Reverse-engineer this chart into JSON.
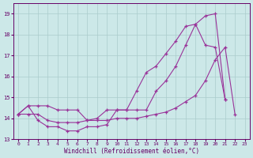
{
  "xlabel": "Windchill (Refroidissement éolien,°C)",
  "background_color": "#cce8e8",
  "grid_color": "#aacccc",
  "line_color": "#993399",
  "xlim": [
    -0.5,
    23.5
  ],
  "ylim": [
    13.0,
    19.5
  ],
  "yticks": [
    13,
    14,
    15,
    16,
    17,
    18,
    19
  ],
  "xticks": [
    0,
    1,
    2,
    3,
    4,
    5,
    6,
    7,
    8,
    9,
    10,
    11,
    12,
    13,
    14,
    15,
    16,
    17,
    18,
    19,
    20,
    21,
    22,
    23
  ],
  "series1_x": [
    0,
    1,
    2,
    3,
    4,
    5,
    6,
    7,
    8,
    9,
    10,
    11,
    12,
    13,
    14,
    15,
    16,
    17,
    18,
    19,
    20,
    21
  ],
  "series1_y": [
    14.2,
    14.6,
    13.9,
    13.6,
    13.6,
    13.4,
    13.4,
    13.6,
    13.6,
    13.7,
    14.4,
    14.4,
    15.3,
    16.2,
    16.5,
    17.1,
    17.7,
    18.4,
    18.5,
    18.9,
    19.0,
    14.9
  ],
  "series2_x": [
    0,
    1,
    2,
    3,
    4,
    5,
    6,
    7,
    8,
    9,
    10,
    11,
    12,
    13,
    14,
    15,
    16,
    17,
    18,
    19,
    20,
    21
  ],
  "series2_y": [
    14.2,
    14.6,
    14.6,
    14.6,
    14.4,
    14.4,
    14.4,
    13.9,
    14.0,
    14.4,
    14.4,
    14.4,
    14.4,
    14.4,
    15.3,
    15.8,
    16.5,
    17.5,
    18.5,
    17.5,
    17.4,
    14.9
  ],
  "series3_x": [
    0,
    1,
    2,
    3,
    4,
    5,
    6,
    7,
    8,
    9,
    10,
    11,
    12,
    13,
    14,
    15,
    16,
    17,
    18,
    19,
    20,
    21,
    22
  ],
  "series3_y": [
    14.2,
    14.2,
    14.2,
    13.9,
    13.8,
    13.8,
    13.8,
    13.9,
    13.9,
    13.9,
    14.0,
    14.0,
    14.0,
    14.1,
    14.2,
    14.3,
    14.5,
    14.8,
    15.1,
    15.8,
    16.8,
    17.4,
    14.2
  ]
}
